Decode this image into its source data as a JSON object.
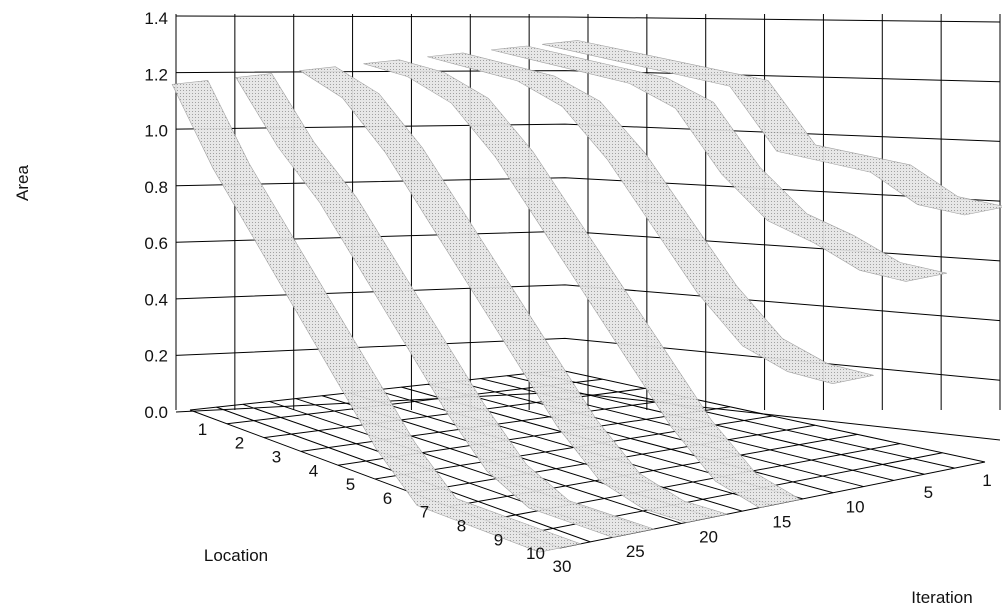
{
  "chart_data": {
    "type": "surface",
    "zlabel": "Area",
    "xlabel": "Location",
    "ylabel": "Iteration",
    "z_ticks": [
      "0.0",
      "0.2",
      "0.4",
      "0.6",
      "0.8",
      "1.0",
      "1.2",
      "1.4"
    ],
    "zlim": [
      0,
      1.4
    ],
    "location_ticks": [
      "1",
      "2",
      "3",
      "4",
      "5",
      "6",
      "7",
      "8",
      "9",
      "10"
    ],
    "iteration_ticks": [
      "1",
      "5",
      "10",
      "15",
      "20",
      "25",
      "30"
    ],
    "grid": true,
    "series": [
      {
        "iteration": 1,
        "location": [
          1,
          2,
          3,
          4,
          5,
          6,
          7,
          8,
          9,
          10
        ],
        "area": [
          1.2,
          1.2,
          1.2,
          1.2,
          1.2,
          1.0,
          1.0,
          1.0,
          0.92,
          0.92
        ]
      },
      {
        "iteration": 5,
        "location": [
          1,
          2,
          3,
          4,
          5,
          6,
          7,
          8,
          9,
          10
        ],
        "area": [
          1.2,
          1.2,
          1.2,
          1.2,
          1.15,
          0.95,
          0.82,
          0.78,
          0.72,
          0.72
        ]
      },
      {
        "iteration": 10,
        "location": [
          1,
          2,
          3,
          4,
          5,
          6,
          7,
          8,
          9,
          10
        ],
        "area": [
          1.2,
          1.2,
          1.2,
          1.15,
          1.0,
          0.8,
          0.6,
          0.45,
          0.4,
          0.4
        ]
      },
      {
        "iteration": 15,
        "location": [
          1,
          2,
          3,
          4,
          5,
          6,
          7,
          8,
          9,
          10
        ],
        "area": [
          1.2,
          1.2,
          1.15,
          1.0,
          0.8,
          0.6,
          0.4,
          0.2,
          0.05,
          0.0
        ]
      },
      {
        "iteration": 20,
        "location": [
          1,
          2,
          3,
          4,
          5,
          6,
          7,
          8,
          9,
          10
        ],
        "area": [
          1.2,
          1.15,
          1.0,
          0.8,
          0.6,
          0.4,
          0.2,
          0.05,
          0.0,
          0.0
        ]
      },
      {
        "iteration": 25,
        "location": [
          1,
          2,
          3,
          4,
          5,
          6,
          7,
          8,
          9,
          10
        ],
        "area": [
          1.2,
          1.0,
          0.85,
          0.65,
          0.45,
          0.25,
          0.08,
          0.0,
          0.0,
          0.0
        ]
      },
      {
        "iteration": 30,
        "location": [
          1,
          2,
          3,
          4,
          5,
          6,
          7,
          8,
          9,
          10
        ],
        "area": [
          1.2,
          0.95,
          0.75,
          0.55,
          0.35,
          0.15,
          0.0,
          0.0,
          0.0,
          0.0
        ]
      }
    ],
    "colors": {
      "surface_fill": "#d9d9d9",
      "surface_dark": "#8a8a8a",
      "grid": "#000000"
    }
  }
}
